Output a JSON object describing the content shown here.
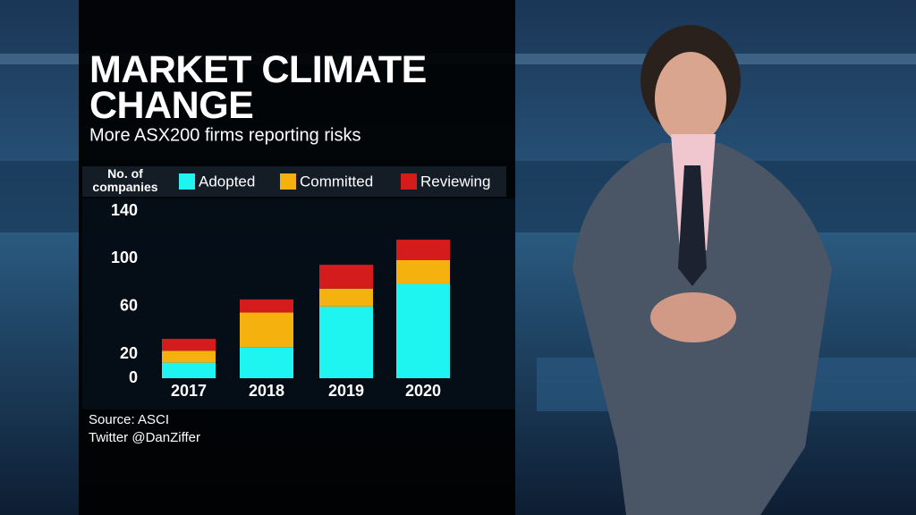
{
  "chart_data": {
    "type": "stacked-bar",
    "title": "MARKET CLIMATE CHANGE",
    "subtitle": "More ASX200 firms reporting risks",
    "y_label": "No. of companies",
    "categories": [
      "2017",
      "2018",
      "2019",
      "2020"
    ],
    "series": [
      {
        "name": "Adopted",
        "color": "#1ef4f0",
        "values": [
          13,
          26,
          60,
          79
        ]
      },
      {
        "name": "Committed",
        "color": "#f5b10e",
        "values": [
          10,
          29,
          15,
          20
        ]
      },
      {
        "name": "Reviewing",
        "color": "#d41c1c",
        "values": [
          10,
          11,
          20,
          17
        ]
      }
    ],
    "ylim": [
      0,
      140
    ],
    "yticks": [
      0,
      20,
      60,
      100,
      140
    ],
    "source": "Source: ASCI",
    "credit": "Twitter @DanZiffer"
  }
}
